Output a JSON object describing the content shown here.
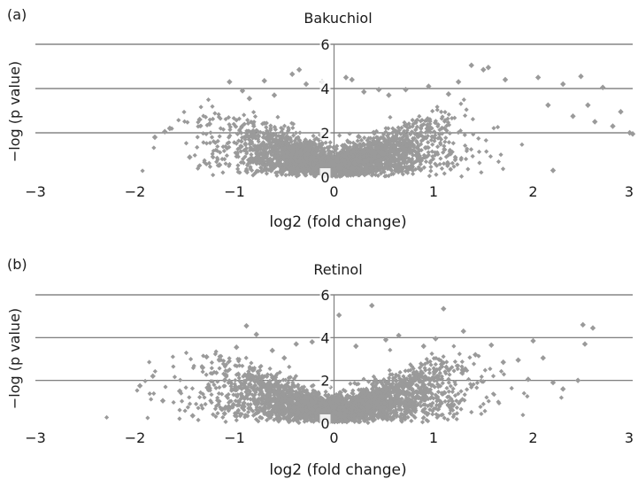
{
  "chart_data": [
    {
      "type": "scatter",
      "panel_label": "(a)",
      "title": "Bakuchiol",
      "xlabel": "log2 (fold change)",
      "ylabel": "−log (p value)",
      "xlim": [
        -3,
        3
      ],
      "ylim": [
        0,
        6
      ],
      "xticks": [
        "−3",
        "−2",
        "−1",
        "0",
        "1",
        "2",
        "3"
      ],
      "yticks": [
        "0",
        "2",
        "4",
        "6"
      ],
      "grid": "horizontal",
      "marker": "diamond",
      "color": "#9a9a9a",
      "points": [
        [
          -1.8,
          1.8
        ],
        [
          -1.65,
          2.2
        ],
        [
          -1.7,
          2.05
        ],
        [
          -1.45,
          0.9
        ],
        [
          -1.35,
          2.6
        ],
        [
          -1.25,
          2.4
        ],
        [
          -1.15,
          0.55
        ],
        [
          -1.05,
          4.3
        ],
        [
          -0.92,
          3.9
        ],
        [
          -0.85,
          3.55
        ],
        [
          -0.7,
          4.35
        ],
        [
          -0.6,
          3.7
        ],
        [
          -0.42,
          4.65
        ],
        [
          -0.35,
          4.85
        ],
        [
          -0.28,
          4.2
        ],
        [
          -0.12,
          4.3
        ],
        [
          0.12,
          4.5
        ],
        [
          0.18,
          4.4
        ],
        [
          0.3,
          3.85
        ],
        [
          0.45,
          3.95
        ],
        [
          0.55,
          3.7
        ],
        [
          0.72,
          3.95
        ],
        [
          0.95,
          4.1
        ],
        [
          1.15,
          3.75
        ],
        [
          1.25,
          4.3
        ],
        [
          1.38,
          5.05
        ],
        [
          1.5,
          4.85
        ],
        [
          1.55,
          4.95
        ],
        [
          1.72,
          4.4
        ],
        [
          2.05,
          4.5
        ],
        [
          2.2,
          0.3
        ],
        [
          2.3,
          4.2
        ],
        [
          2.48,
          4.55
        ],
        [
          2.55,
          3.25
        ],
        [
          2.62,
          2.5
        ],
        [
          2.7,
          4.05
        ],
        [
          2.8,
          2.3
        ],
        [
          2.88,
          2.95
        ],
        [
          2.97,
          2.0
        ],
        [
          3.0,
          1.95
        ],
        [
          2.4,
          2.75
        ],
        [
          2.15,
          3.25
        ]
      ]
    },
    {
      "type": "scatter",
      "panel_label": "(b)",
      "title": "Retinol",
      "xlabel": "log2 (fold change)",
      "ylabel": "−log (p value)",
      "xlim": [
        -3,
        3
      ],
      "ylim": [
        0,
        6
      ],
      "xticks": [
        "−3",
        "−2",
        "−1",
        "0",
        "1",
        "2",
        "3"
      ],
      "yticks": [
        "0",
        "2",
        "4",
        "6"
      ],
      "grid": "horizontal",
      "marker": "diamond",
      "color": "#9a9a9a",
      "points": [
        [
          -1.95,
          1.75
        ],
        [
          -1.82,
          2.2
        ],
        [
          -1.72,
          1.05
        ],
        [
          -1.55,
          1.5
        ],
        [
          -1.42,
          0.35
        ],
        [
          -1.32,
          2.6
        ],
        [
          -1.28,
          3.1
        ],
        [
          -1.1,
          0.45
        ],
        [
          -0.98,
          3.55
        ],
        [
          -0.88,
          4.55
        ],
        [
          -0.78,
          4.15
        ],
        [
          -0.62,
          3.4
        ],
        [
          -0.5,
          3.05
        ],
        [
          -0.38,
          3.7
        ],
        [
          -0.22,
          3.8
        ],
        [
          0.05,
          5.05
        ],
        [
          0.22,
          3.6
        ],
        [
          0.38,
          5.5
        ],
        [
          0.52,
          3.9
        ],
        [
          0.65,
          4.1
        ],
        [
          0.9,
          3.6
        ],
        [
          1.02,
          3.95
        ],
        [
          1.1,
          5.35
        ],
        [
          1.3,
          4.3
        ],
        [
          1.42,
          3.2
        ],
        [
          1.58,
          3.65
        ],
        [
          1.7,
          2.85
        ],
        [
          1.85,
          2.95
        ],
        [
          1.95,
          2.05
        ],
        [
          2.0,
          3.85
        ],
        [
          2.1,
          3.05
        ],
        [
          2.2,
          1.9
        ],
        [
          2.3,
          1.6
        ],
        [
          2.45,
          2.0
        ],
        [
          2.5,
          4.6
        ],
        [
          2.6,
          4.45
        ],
        [
          2.52,
          3.7
        ]
      ]
    }
  ]
}
